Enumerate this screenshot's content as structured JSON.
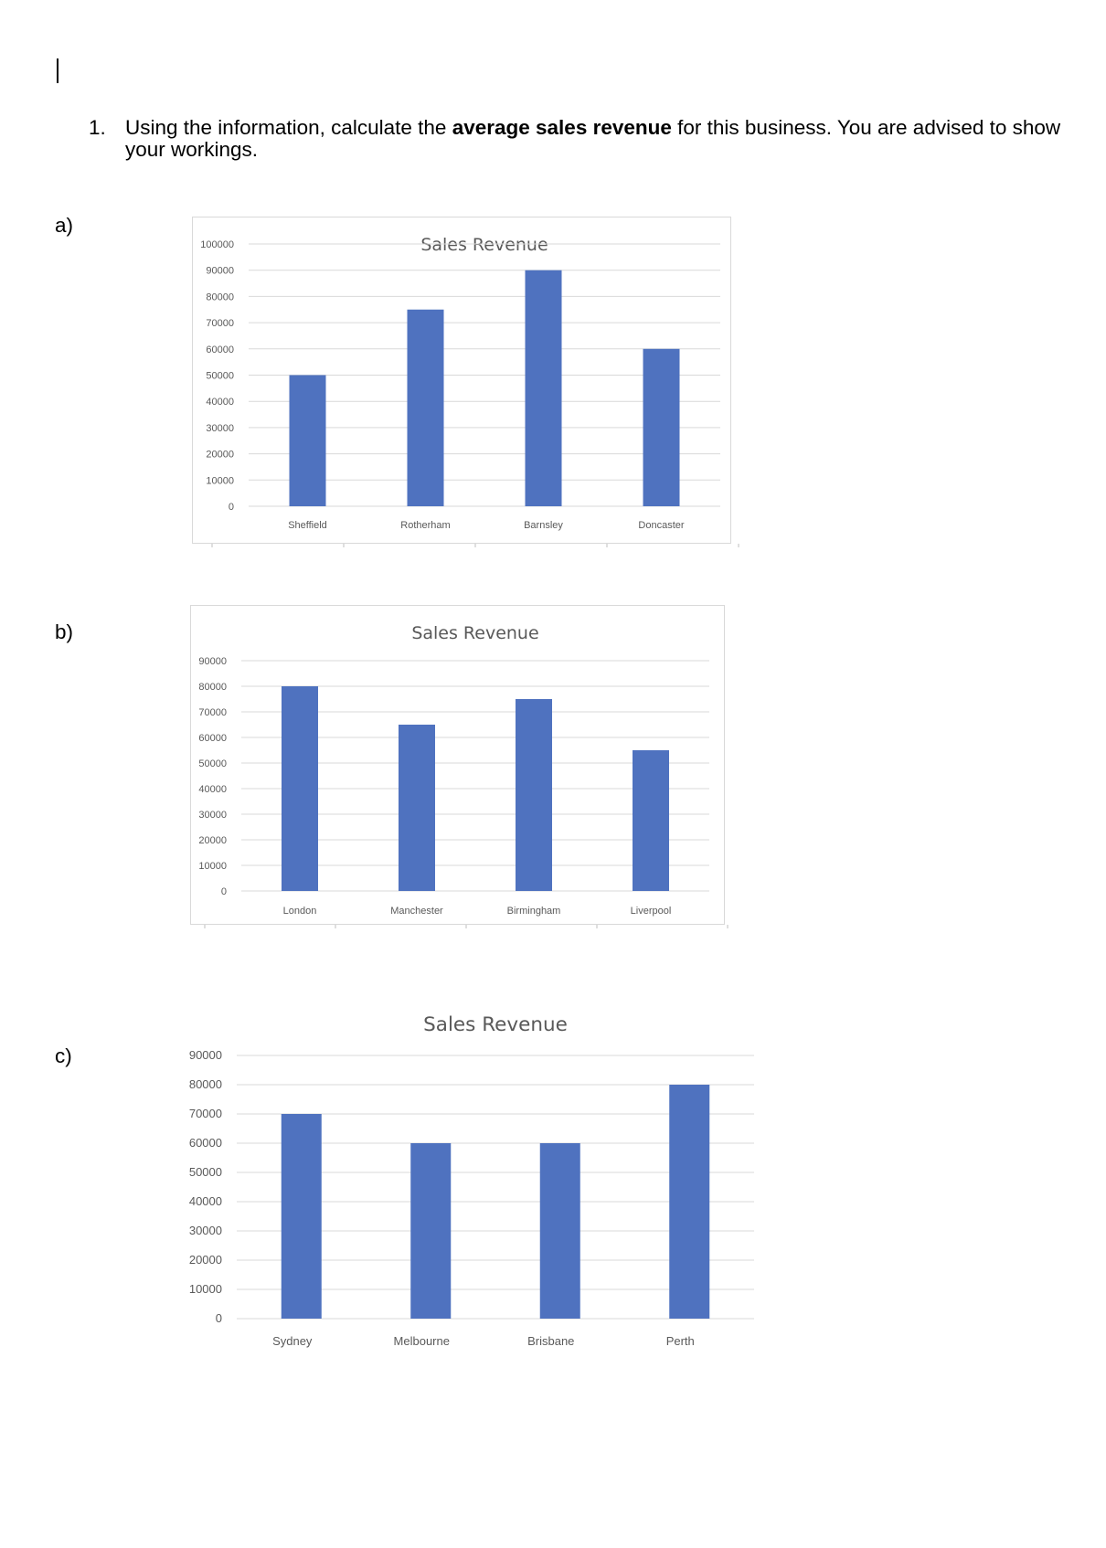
{
  "question": {
    "number": "1.",
    "text_before": "Using the information, calculate the ",
    "text_bold": "average sales revenue",
    "text_after": " for this business. You are advised to show your workings."
  },
  "parts": [
    {
      "label": "a)"
    },
    {
      "label": "b)"
    },
    {
      "label": "c)"
    }
  ],
  "colors": {
    "bar": "#4F72BF",
    "grid": "#D9D9D9",
    "text": "#595959",
    "frame": "#D9D9D9"
  },
  "chart_data": [
    {
      "type": "bar",
      "title": "Sales Revenue",
      "categories": [
        "Sheffield",
        "Rotherham",
        "Barnsley",
        "Doncaster"
      ],
      "values": [
        50000,
        75000,
        90000,
        60000
      ],
      "yticks": [
        "100000",
        "90000",
        "80000",
        "70000",
        "60000",
        "50000",
        "40000",
        "30000",
        "20000",
        "10000",
        "0"
      ],
      "ylim": [
        0,
        100000
      ],
      "grid": true,
      "legend": "none"
    },
    {
      "type": "bar",
      "title": "Sales Revenue",
      "categories": [
        "London",
        "Manchester",
        "Birmingham",
        "Liverpool"
      ],
      "values": [
        80000,
        65000,
        75000,
        55000
      ],
      "yticks": [
        "90000",
        "80000",
        "70000",
        "60000",
        "50000",
        "40000",
        "30000",
        "20000",
        "10000",
        "0"
      ],
      "ylim": [
        0,
        90000
      ],
      "grid": true,
      "legend": "none"
    },
    {
      "type": "bar",
      "title": "Sales Revenue",
      "categories": [
        "Sydney",
        "Melbourne",
        "Brisbane",
        "Perth"
      ],
      "values": [
        70000,
        60000,
        60000,
        80000
      ],
      "yticks": [
        "90000",
        "80000",
        "70000",
        "60000",
        "50000",
        "40000",
        "30000",
        "20000",
        "10000",
        "0"
      ],
      "ylim": [
        0,
        90000
      ],
      "grid": true,
      "legend": "none"
    }
  ]
}
